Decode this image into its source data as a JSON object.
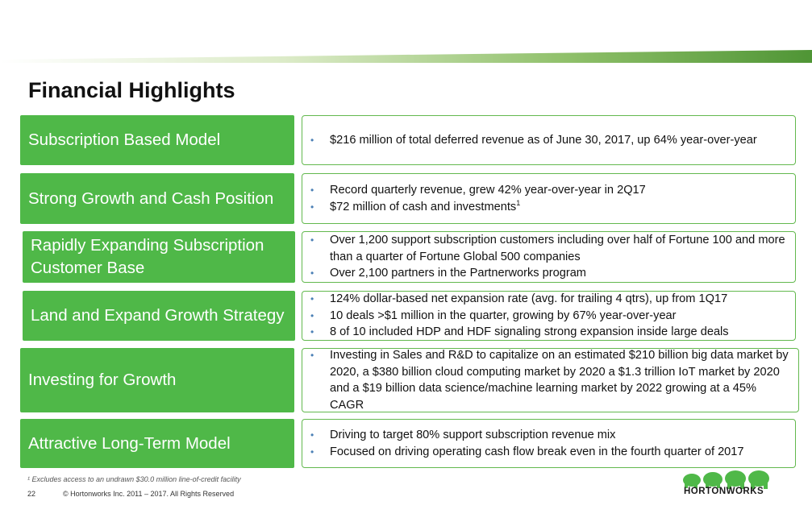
{
  "title": "Financial Highlights",
  "colors": {
    "accent_green": "#4fb848",
    "band_green": "#5a9e3b",
    "bullet_blue": "#4a7fb5"
  },
  "rows": [
    {
      "label": "Subscription Based Model",
      "bullets": [
        {
          "text": "$216 million of total deferred revenue as of June 30, 2017, up 64% year-over-year",
          "sup": ""
        }
      ]
    },
    {
      "label": "Strong Growth and Cash Position",
      "bullets": [
        {
          "text": "Record quarterly revenue, grew 42% year-over-year in 2Q17",
          "sup": ""
        },
        {
          "text": "$72 million of cash and investments",
          "sup": "1"
        }
      ]
    },
    {
      "label": "Rapidly Expanding Subscription Customer Base",
      "bullets": [
        {
          "text": "Over 1,200 support subscription customers including over half of Fortune 100 and more than a quarter of Fortune Global 500 companies",
          "sup": ""
        },
        {
          "text": "Over 2,100 partners in the Partnerworks program",
          "sup": ""
        }
      ]
    },
    {
      "label": "Land and Expand Growth Strategy",
      "bullets": [
        {
          "text": "124% dollar-based net expansion rate (avg. for trailing 4 qtrs), up from 1Q17",
          "sup": ""
        },
        {
          "text": "10 deals >$1 million in the quarter, growing by 67% year-over-year",
          "sup": ""
        },
        {
          "text": "8 of 10 included HDP and HDF signaling strong expansion inside large deals",
          "sup": ""
        }
      ]
    },
    {
      "label": "Investing for Growth",
      "bullets": [
        {
          "text": "Investing in Sales and R&D to capitalize on an estimated $210 billion big data market by 2020, a $380 billion cloud computing market by 2020 a $1.3 trillion IoT market by 2020 and a $19 billion data science/machine learning market by 2022 growing at a 45% CAGR",
          "sup": ""
        }
      ]
    },
    {
      "label": "Attractive Long-Term Model",
      "bullets": [
        {
          "text": "Driving to target 80% support subscription revenue mix",
          "sup": ""
        },
        {
          "text": "Focused on driving operating cash flow break even in the fourth quarter of 2017",
          "sup": ""
        }
      ]
    }
  ],
  "footnote": "¹ Excludes access to an undrawn $30.0 million line-of-credit facility",
  "page_number": "22",
  "copyright": "© Hortonworks Inc. 2011 – 2017. All Rights Reserved",
  "logo_text": "HORTONWORKS",
  "logo_icon": "elephant-herd-icon"
}
